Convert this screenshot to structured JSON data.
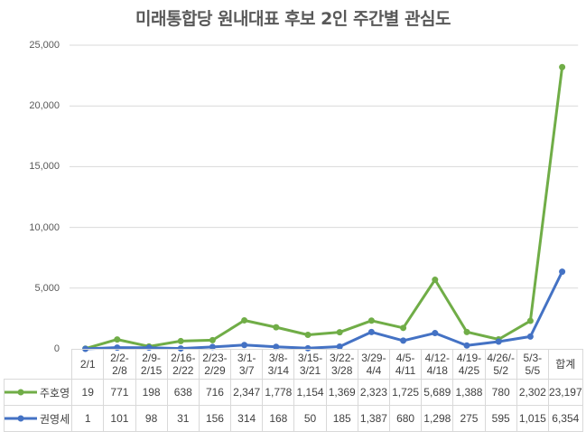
{
  "chart_data": {
    "type": "line",
    "title": "미래통합당 원내대표 후보 2인 주간별 관심도",
    "xlabel": "",
    "ylabel": "",
    "ylim": [
      0,
      25000
    ],
    "yticks": [
      "0",
      "5,000",
      "10,000",
      "15,000",
      "20,000",
      "25,000"
    ],
    "grid": true,
    "legend_position": "data-table",
    "categories": [
      "2/1",
      "2/2-2/8",
      "2/9-2/15",
      "2/16-2/22",
      "2/23-2/29",
      "3/1-3/7",
      "3/8-3/14",
      "3/15-3/21",
      "3/22-3/28",
      "3/29-4/4",
      "4/5-4/11",
      "4/12-4/18",
      "4/19-4/25",
      "4/26/-5/2",
      "5/3-5/5",
      "합계"
    ],
    "category_lines": [
      [
        "2/1",
        ""
      ],
      [
        "2/2-",
        "2/8"
      ],
      [
        "2/9-",
        "2/15"
      ],
      [
        "2/16-",
        "2/22"
      ],
      [
        "2/23-",
        "2/29"
      ],
      [
        "3/1-",
        "3/7"
      ],
      [
        "3/8-",
        "3/14"
      ],
      [
        "3/15-",
        "3/21"
      ],
      [
        "3/22-",
        "3/28"
      ],
      [
        "3/29-",
        "4/4"
      ],
      [
        "4/5-",
        "4/11"
      ],
      [
        "4/12-",
        "4/18"
      ],
      [
        "4/19-",
        "4/25"
      ],
      [
        "4/26/-",
        "5/2"
      ],
      [
        "5/3-",
        "5/5"
      ],
      [
        "합계",
        ""
      ]
    ],
    "series": [
      {
        "name": "주호영",
        "color": "#70AD47",
        "values": [
          19,
          771,
          198,
          638,
          716,
          2347,
          1778,
          1154,
          1369,
          2323,
          1725,
          5689,
          1388,
          780,
          2302,
          23197
        ],
        "labels": [
          "19",
          "771",
          "198",
          "638",
          "716",
          "2,347",
          "1,778",
          "1,154",
          "1,369",
          "2,323",
          "1,725",
          "5,689",
          "1,388",
          "780",
          "2,302",
          "23,197"
        ]
      },
      {
        "name": "권영세",
        "color": "#4472C4",
        "values": [
          1,
          101,
          98,
          31,
          156,
          314,
          168,
          50,
          185,
          1387,
          680,
          1298,
          275,
          595,
          1015,
          6354
        ],
        "labels": [
          "1",
          "101",
          "98",
          "31",
          "156",
          "314",
          "168",
          "50",
          "185",
          "1,387",
          "680",
          "1,298",
          "275",
          "595",
          "1,015",
          "6,354"
        ]
      }
    ]
  }
}
